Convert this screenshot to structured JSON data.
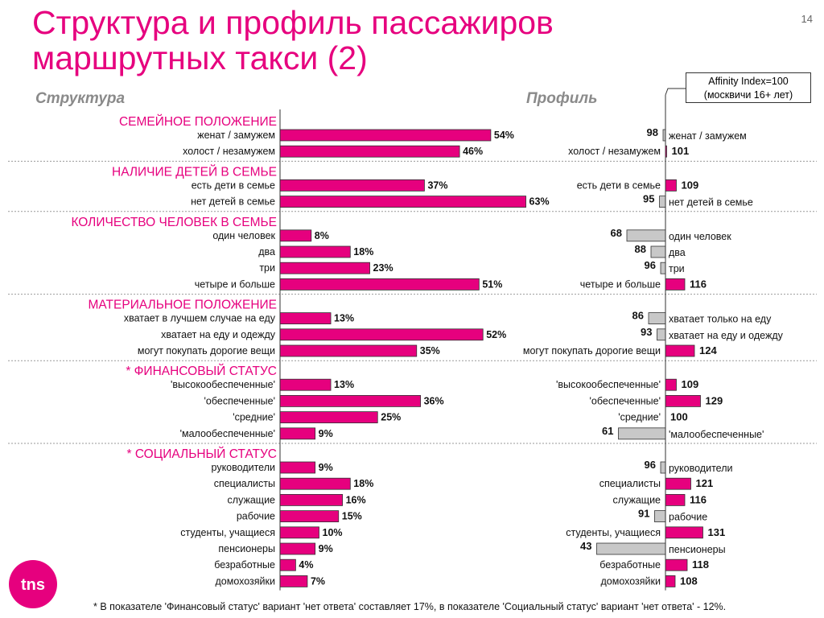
{
  "slide": {
    "title_line1": "Структура  и профиль пассажиров",
    "title_line2": "маршрутных такси (2)",
    "number": "14",
    "structure_header": "Структура",
    "profile_header": "Профиль",
    "affinity_line1": "Affinity Index=100",
    "affinity_line2": "(москвичи 16+ лет)",
    "footnote": "* В показателе 'Финансовый статус' вариант 'нет ответа' составляет 17%, в показателе 'Социальный статус' вариант 'нет ответа' - 12%.",
    "logo_text": "tns"
  },
  "colors": {
    "title": "#e6007e",
    "bar_pink": "#e6007e",
    "bar_gray": "#c8c8c8",
    "section": "#e6007e"
  },
  "chart_data": [
    {
      "type": "bar",
      "title": "Структура",
      "unit": "%",
      "sections": [
        {
          "name": "СЕМЕЙНОЕ ПОЛОЖЕНИЕ",
          "categories": [
            "женат / замужем",
            "холост / незамужем"
          ],
          "values": [
            54,
            46
          ]
        },
        {
          "name": "НАЛИЧИЕ ДЕТЕЙ В СЕМЬЕ",
          "categories": [
            "есть дети в семье",
            "нет детей в семье"
          ],
          "values": [
            37,
            63
          ]
        },
        {
          "name": "КОЛИЧЕСТВО ЧЕЛОВЕК В СЕМЬЕ",
          "categories": [
            "один человек",
            "два",
            "три",
            "четыре и больше"
          ],
          "values": [
            8,
            18,
            23,
            51
          ]
        },
        {
          "name": "МАТЕРИАЛЬНОЕ ПОЛОЖЕНИЕ",
          "categories": [
            "хватает в лучшем случае на еду",
            "хватает на еду и одежду",
            "могут покупать дорогие вещи"
          ],
          "values": [
            13,
            52,
            35
          ]
        },
        {
          "name": "* ФИНАНСОВЫЙ СТАТУС",
          "categories": [
            "'высокообеспеченные'",
            "'обеспеченные'",
            "'средние'",
            "'малообеспеченные'"
          ],
          "values": [
            13,
            36,
            25,
            9
          ]
        },
        {
          "name": "* СОЦИАЛЬНЫЙ СТАТУС",
          "categories": [
            "руководители",
            "специалисты",
            "служащие",
            "рабочие",
            "студенты, учащиеся",
            "пенсионеры",
            "безработные",
            "домохозяйки"
          ],
          "values": [
            9,
            18,
            16,
            15,
            10,
            9,
            4,
            7
          ]
        }
      ]
    },
    {
      "type": "bar",
      "title": "Профиль",
      "baseline": 100,
      "sections": [
        {
          "categories": [
            "женат / замужем",
            "холост / незамужем"
          ],
          "values": [
            98,
            101
          ]
        },
        {
          "categories": [
            "есть дети в семье",
            "нет детей в семье"
          ],
          "values": [
            109,
            95
          ]
        },
        {
          "categories": [
            "один человек",
            "два",
            "три",
            "четыре и больше"
          ],
          "values": [
            68,
            88,
            96,
            116
          ]
        },
        {
          "categories": [
            "хватает  только на еду",
            "хватает на еду и одежду",
            "могут покупать дорогие вещи"
          ],
          "values": [
            86,
            93,
            124
          ]
        },
        {
          "categories": [
            "'высокообеспеченные'",
            "'обеспеченные'",
            "'средние'",
            "'малообеспеченные'"
          ],
          "values": [
            109,
            129,
            100,
            61
          ]
        },
        {
          "categories": [
            "руководители",
            "специалисты",
            "служащие",
            "рабочие",
            "студенты, учащиеся",
            "пенсионеры",
            "безработные",
            "домохозяйки"
          ],
          "values": [
            96,
            121,
            116,
            91,
            131,
            43,
            118,
            108
          ]
        }
      ]
    }
  ]
}
